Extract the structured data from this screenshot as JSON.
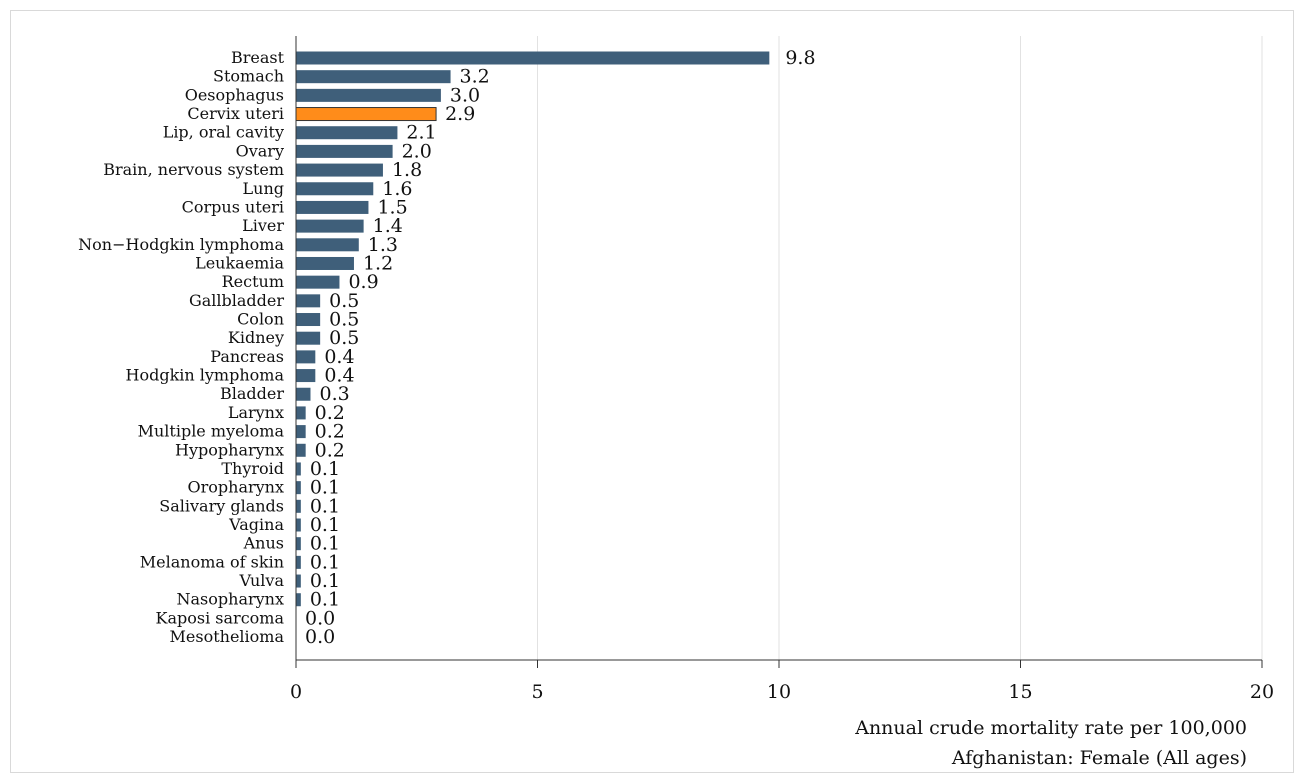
{
  "colors": {
    "bar": "#3f5f7a",
    "highlight": "#ff8c1a",
    "grid": "#e2e2e2",
    "axis": "#333333"
  },
  "chart_data": {
    "type": "bar",
    "orientation": "horizontal",
    "xlabel": "Annual crude mortality rate per 100,000",
    "subtitle": "Afghanistan: Female (All ages)",
    "xlim": [
      0,
      20
    ],
    "xticks": [
      0,
      5,
      10,
      15,
      20
    ],
    "grid": true,
    "highlight_category": "Cervix uteri",
    "categories": [
      "Breast",
      "Stomach",
      "Oesophagus",
      "Cervix uteri",
      "Lip, oral cavity",
      "Ovary",
      "Brain, nervous system",
      "Lung",
      "Corpus uteri",
      "Liver",
      "Non−Hodgkin lymphoma",
      "Leukaemia",
      "Rectum",
      "Gallbladder",
      "Colon",
      "Kidney",
      "Pancreas",
      "Hodgkin lymphoma",
      "Bladder",
      "Larynx",
      "Multiple myeloma",
      "Hypopharynx",
      "Thyroid",
      "Oropharynx",
      "Salivary glands",
      "Vagina",
      "Anus",
      "Melanoma of skin",
      "Vulva",
      "Nasopharynx",
      "Kaposi sarcoma",
      "Mesothelioma"
    ],
    "values": [
      9.8,
      3.2,
      3.0,
      2.9,
      2.1,
      2.0,
      1.8,
      1.6,
      1.5,
      1.4,
      1.3,
      1.2,
      0.9,
      0.5,
      0.5,
      0.5,
      0.4,
      0.4,
      0.3,
      0.2,
      0.2,
      0.2,
      0.1,
      0.1,
      0.1,
      0.1,
      0.1,
      0.1,
      0.1,
      0.1,
      0.0,
      0.0
    ],
    "value_labels": [
      "9.8",
      "3.2",
      "3.0",
      "2.9",
      "2.1",
      "2.0",
      "1.8",
      "1.6",
      "1.5",
      "1.4",
      "1.3",
      "1.2",
      "0.9",
      "0.5",
      "0.5",
      "0.5",
      "0.4",
      "0.4",
      "0.3",
      "0.2",
      "0.2",
      "0.2",
      "0.1",
      "0.1",
      "0.1",
      "0.1",
      "0.1",
      "0.1",
      "0.1",
      "0.1",
      "0.0",
      "0.0"
    ]
  }
}
